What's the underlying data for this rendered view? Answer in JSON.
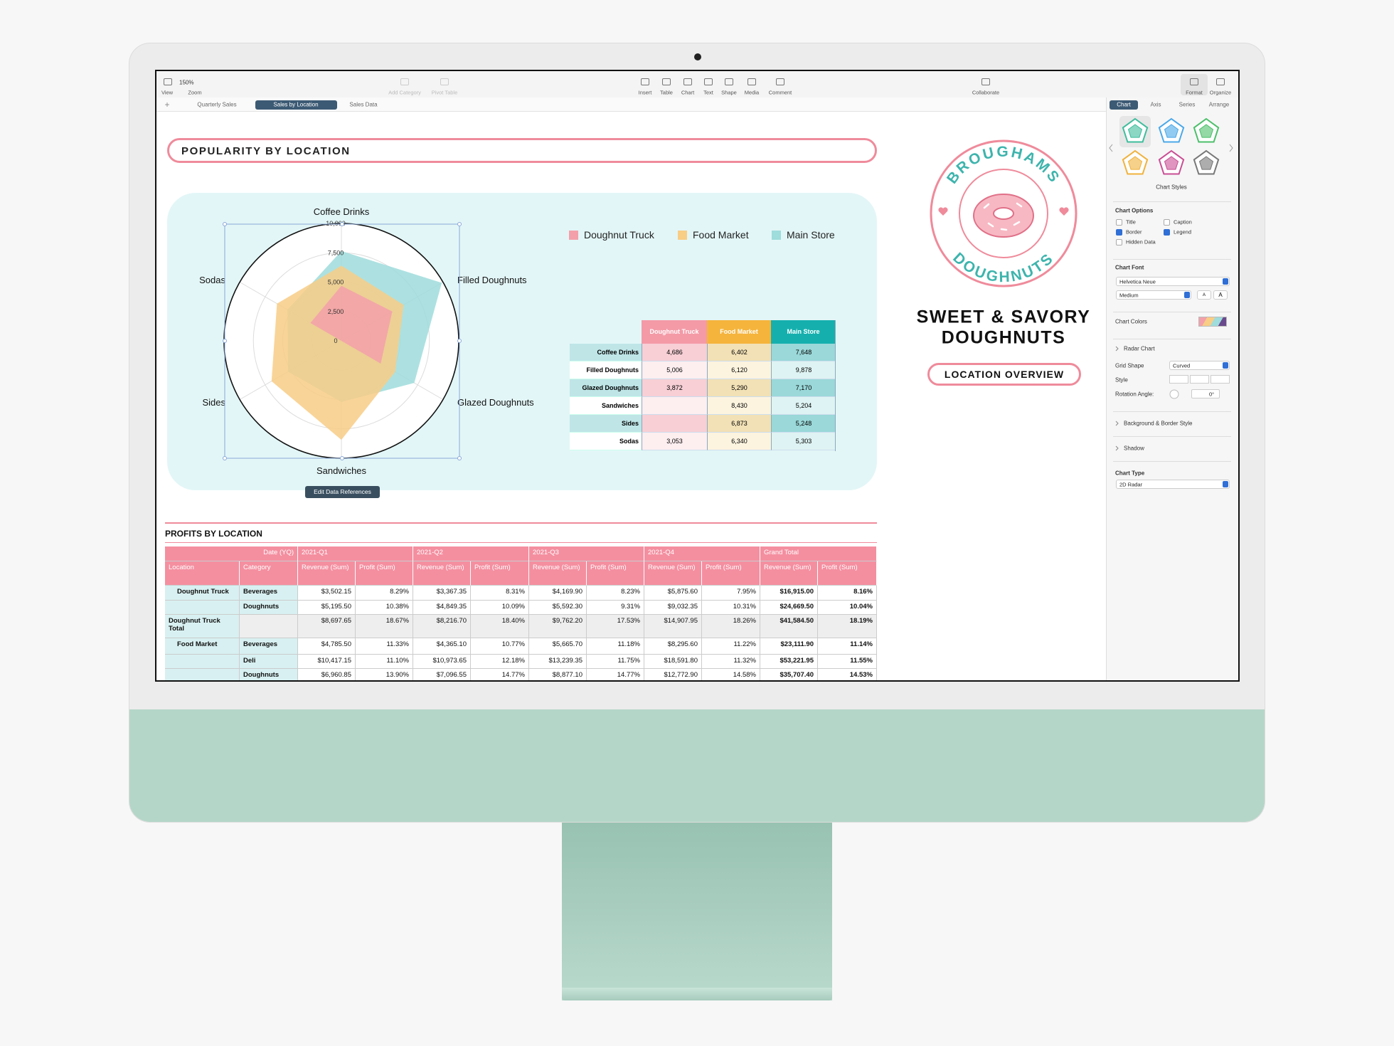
{
  "toolbar": {
    "zoom": "150%",
    "view": "View",
    "zoom_label": "Zoom",
    "add_category": "Add Category",
    "pivot_table": "Pivot Table",
    "insert": "Insert",
    "table": "Table",
    "chart": "Chart",
    "text": "Text",
    "shape": "Shape",
    "media": "Media",
    "comment": "Comment",
    "collaborate": "Collaborate",
    "format": "Format",
    "organize": "Organize"
  },
  "sheets": {
    "add": "+",
    "tabs": [
      "Quarterly Sales",
      "Sales by Location",
      "Sales Data"
    ]
  },
  "heading": "POPULARITY BY LOCATION",
  "chart_data": {
    "type": "radar",
    "categories": [
      "Coffee Drinks",
      "Filled Doughnuts",
      "Glazed Doughnuts",
      "Sandwiches",
      "Sides",
      "Sodas"
    ],
    "series": [
      {
        "name": "Doughnut Truck",
        "color": "#f3a0aa",
        "values": [
          4686,
          5006,
          3872,
          null,
          null,
          3053
        ],
        "value_labels": [
          "4,686",
          "5,006",
          "3,872",
          null,
          null,
          "3,053"
        ]
      },
      {
        "name": "Food Market",
        "color": "#f8cd86",
        "values": [
          6402,
          6120,
          5290,
          8430,
          6873,
          6340
        ],
        "value_labels": [
          "6,402",
          "6,120",
          "5,290",
          "8,430",
          "6,873",
          "6,340"
        ]
      },
      {
        "name": "Main Store",
        "color": "#9fdcdc",
        "values": [
          7648,
          9878,
          7170,
          5204,
          5248,
          5303
        ],
        "value_labels": [
          "7,648",
          "9,878",
          "7,170",
          "5,204",
          "5,248",
          "5,303"
        ]
      }
    ],
    "rlim": [
      0,
      10000
    ],
    "rticks": [
      0,
      {
        "value": 2500,
        "label": "2,500"
      },
      {
        "value": 5000,
        "label": "5,000"
      },
      {
        "value": 7500,
        "label": "7,500"
      },
      {
        "value": 10000,
        "label": "10,000"
      }
    ],
    "grid": true,
    "legend": "top-right",
    "edit_button": "Edit Data References"
  },
  "brand": {
    "logo_top": "BROUGHAMS",
    "logo_bottom": "DOUGHNUTS",
    "title_line1": "SWEET & SAVORY",
    "title_line2": "DOUGHNUTS",
    "button": "LOCATION OVERVIEW"
  },
  "profits": {
    "title": "PROFITS BY LOCATION",
    "date_label": "Date (YQ)",
    "periods": [
      "2021-Q1",
      "2021-Q2",
      "2021-Q3",
      "2021-Q4",
      "Grand Total"
    ],
    "location_label": "Location",
    "category_label": "Category",
    "revenue_label": "Revenue (Sum)",
    "profit_label": "Profit (Sum)",
    "rows": [
      {
        "location": "Doughnut Truck",
        "category": "Beverages",
        "cells": [
          "$3,502.15",
          "8.29%",
          "$3,367.35",
          "8.31%",
          "$4,169.90",
          "8.23%",
          "$5,875.60",
          "7.95%",
          "$16,915.00",
          "8.16%"
        ]
      },
      {
        "category": "Doughnuts",
        "cells": [
          "$5,195.50",
          "10.38%",
          "$4,849.35",
          "10.09%",
          "$5,592.30",
          "9.31%",
          "$9,032.35",
          "10.31%",
          "$24,669.50",
          "10.04%"
        ]
      },
      {
        "location": "Doughnut Truck Total",
        "cells": [
          "$8,697.65",
          "18.67%",
          "$8,216.70",
          "18.40%",
          "$9,762.20",
          "17.53%",
          "$14,907.95",
          "18.26%",
          "$41,584.50",
          "18.19%"
        ]
      },
      {
        "location": "Food Market",
        "category": "Beverages",
        "cells": [
          "$4,785.50",
          "11.33%",
          "$4,365.10",
          "10.77%",
          "$5,665.70",
          "11.18%",
          "$8,295.60",
          "11.22%",
          "$23,111.90",
          "11.14%"
        ]
      },
      {
        "category": "Deli",
        "cells": [
          "$10,417.15",
          "11.10%",
          "$10,973.65",
          "12.18%",
          "$13,239.35",
          "11.75%",
          "$18,591.80",
          "11.32%",
          "$53,221.95",
          "11.55%"
        ]
      },
      {
        "category": "Doughnuts",
        "cells": [
          "$6,960.85",
          "13.90%",
          "$7,096.55",
          "14.77%",
          "$8,877.10",
          "14.77%",
          "$12,772.90",
          "14.58%",
          "$35,707.40",
          "14.53%"
        ]
      }
    ]
  },
  "inspector": {
    "tabs": [
      "Chart",
      "Axis",
      "Series",
      "Arrange"
    ],
    "chart_styles": "Chart Styles",
    "chart_options": "Chart Options",
    "options": [
      {
        "label": "Title",
        "checked": false
      },
      {
        "label": "Caption",
        "checked": false
      },
      {
        "label": "Border",
        "checked": true
      },
      {
        "label": "Legend",
        "checked": true
      },
      {
        "label": "Hidden Data",
        "checked": false
      }
    ],
    "chart_font": "Chart Font",
    "font_name": "Helvetica Neue",
    "font_weight": "Medium",
    "font_smaller": "A",
    "font_larger": "A",
    "chart_colors": "Chart Colors",
    "radar_chart": "Radar Chart",
    "grid_shape": "Grid Shape",
    "grid_shape_value": "Curved",
    "style": "Style",
    "rotation_angle": "Rotation Angle:",
    "rotation_value": "0°",
    "background_border": "Background & Border Style",
    "shadow": "Shadow",
    "chart_type": "Chart Type",
    "chart_type_value": "2D Radar"
  }
}
